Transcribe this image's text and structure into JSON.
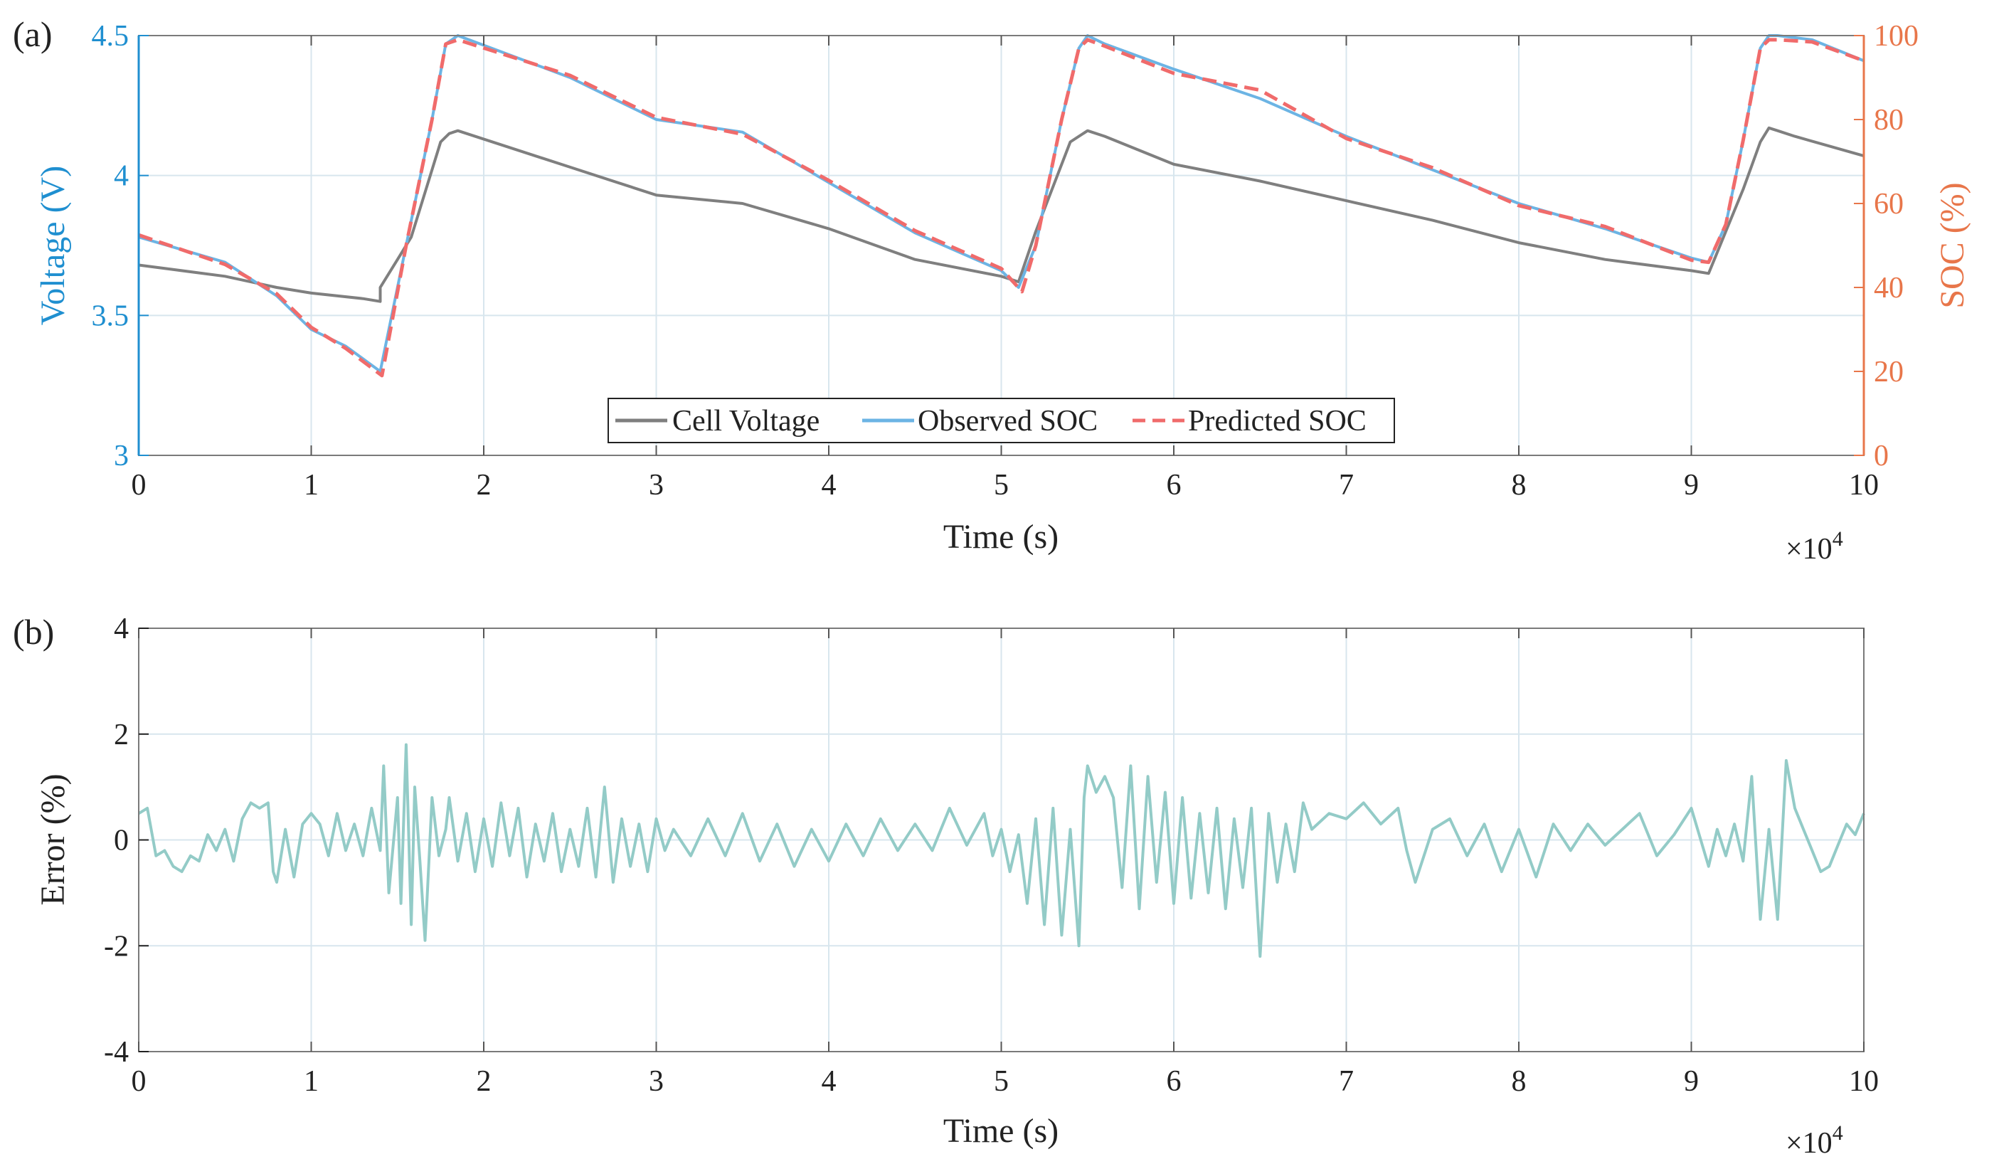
{
  "colors": {
    "voltage": "#7f7f7f",
    "observed": "#6cb4e4",
    "predicted": "#f06b6b",
    "error": "#93cbc7",
    "left_axis": "#1f8fd0",
    "right_axis": "#e8764a",
    "grid": "#d8e6ee",
    "axis": "#404040"
  },
  "chart_data": [
    {
      "type": "line",
      "panel_label": "(a)",
      "xlabel": "Time (s)",
      "x_multiplier": "×10",
      "x_multiplier_exp": "4",
      "xlim": [
        0,
        10
      ],
      "xticks": [
        "0",
        "1",
        "2",
        "3",
        "4",
        "5",
        "6",
        "7",
        "8",
        "9",
        "10"
      ],
      "ylabel_left": "Voltage (V)",
      "ylim_left": [
        3,
        4.5
      ],
      "yticks_left": [
        "3",
        "3.5",
        "4",
        "4.5"
      ],
      "ylabel_right": "SOC (%)",
      "ylim_right": [
        0,
        100
      ],
      "yticks_right": [
        "0",
        "20",
        "40",
        "60",
        "80",
        "100"
      ],
      "grid": true,
      "legend": [
        "Cell Voltage",
        "Observed SOC",
        "Predicted SOC"
      ],
      "legend_position": "bottom-center",
      "series": [
        {
          "name": "Cell Voltage",
          "axis": "left",
          "x": [
            0,
            0.5,
            0.8,
            1.0,
            1.3,
            1.4,
            1.4,
            1.5,
            1.58,
            1.75,
            1.8,
            1.85,
            2.5,
            3.0,
            3.5,
            4.0,
            4.5,
            5.0,
            5.05,
            5.1,
            5.2,
            5.4,
            5.5,
            5.6,
            6.0,
            6.5,
            7.0,
            7.5,
            8.0,
            8.5,
            9.0,
            9.1,
            9.2,
            9.3,
            9.4,
            9.45,
            9.5,
            9.6,
            10.0
          ],
          "values": [
            3.68,
            3.64,
            3.6,
            3.58,
            3.56,
            3.55,
            3.6,
            3.7,
            3.78,
            4.12,
            4.15,
            4.16,
            4.03,
            3.93,
            3.9,
            3.81,
            3.7,
            3.64,
            3.63,
            3.62,
            3.8,
            4.12,
            4.16,
            4.14,
            4.04,
            3.98,
            3.91,
            3.84,
            3.76,
            3.7,
            3.66,
            3.65,
            3.8,
            3.95,
            4.12,
            4.17,
            4.16,
            4.14,
            4.07
          ]
        },
        {
          "name": "Observed SOC",
          "axis": "right",
          "x": [
            0,
            0.5,
            0.8,
            1.0,
            1.2,
            1.4,
            1.55,
            1.7,
            1.78,
            1.85,
            2.5,
            3.0,
            3.5,
            4.0,
            4.5,
            5.0,
            5.1,
            5.2,
            5.35,
            5.45,
            5.5,
            5.6,
            6.0,
            6.5,
            7.0,
            7.5,
            8.0,
            8.5,
            9.0,
            9.1,
            9.2,
            9.3,
            9.4,
            9.45,
            9.5,
            9.7,
            10.0
          ],
          "values": [
            52,
            46,
            38,
            30,
            26,
            20,
            50,
            80,
            98,
            100,
            90,
            80,
            77,
            65,
            53,
            44,
            40,
            50,
            80,
            97,
            100,
            98,
            92,
            85,
            76,
            68,
            60,
            54,
            47,
            46,
            55,
            75,
            97,
            100,
            100,
            99,
            94
          ]
        },
        {
          "name": "Predicted SOC",
          "axis": "right",
          "x": [
            0,
            0.5,
            0.8,
            1.0,
            1.2,
            1.41,
            1.55,
            1.7,
            1.78,
            1.85,
            2.5,
            3.0,
            3.5,
            4.0,
            4.5,
            5.0,
            5.12,
            5.2,
            5.35,
            5.45,
            5.5,
            5.6,
            6.0,
            6.5,
            7.0,
            7.5,
            8.0,
            8.5,
            9.0,
            9.1,
            9.2,
            9.3,
            9.4,
            9.45,
            9.5,
            9.7,
            10.0
          ],
          "values": [
            52.5,
            45.5,
            38.5,
            30.5,
            25.5,
            19,
            50,
            80,
            98,
            99,
            90.5,
            80.5,
            76.5,
            65.5,
            53.5,
            44.5,
            39,
            50,
            80,
            97,
            99,
            97.5,
            91,
            87,
            75.5,
            68.5,
            59.5,
            54.5,
            46.5,
            46,
            55,
            75,
            97,
            99,
            99,
            98.5,
            94
          ]
        }
      ]
    },
    {
      "type": "line",
      "panel_label": "(b)",
      "xlabel": "Time (s)",
      "x_multiplier": "×10",
      "x_multiplier_exp": "4",
      "xlim": [
        0,
        10
      ],
      "xticks": [
        "0",
        "1",
        "2",
        "3",
        "4",
        "5",
        "6",
        "7",
        "8",
        "9",
        "10"
      ],
      "ylabel": "Error (%)",
      "ylim": [
        -4,
        4
      ],
      "yticks": [
        "-4",
        "-2",
        "0",
        "2",
        "4"
      ],
      "grid": true,
      "series": [
        {
          "name": "Error",
          "x": [
            0,
            0.05,
            0.1,
            0.15,
            0.2,
            0.25,
            0.3,
            0.35,
            0.4,
            0.45,
            0.5,
            0.55,
            0.6,
            0.65,
            0.7,
            0.75,
            0.78,
            0.8,
            0.85,
            0.9,
            0.95,
            1.0,
            1.05,
            1.1,
            1.15,
            1.2,
            1.25,
            1.3,
            1.35,
            1.4,
            1.42,
            1.45,
            1.5,
            1.52,
            1.55,
            1.58,
            1.6,
            1.63,
            1.66,
            1.7,
            1.74,
            1.78,
            1.8,
            1.85,
            1.9,
            1.95,
            2.0,
            2.05,
            2.1,
            2.15,
            2.2,
            2.25,
            2.3,
            2.35,
            2.4,
            2.45,
            2.5,
            2.55,
            2.6,
            2.65,
            2.7,
            2.75,
            2.8,
            2.85,
            2.9,
            2.95,
            3.0,
            3.05,
            3.1,
            3.2,
            3.3,
            3.4,
            3.5,
            3.6,
            3.7,
            3.8,
            3.9,
            4.0,
            4.1,
            4.2,
            4.3,
            4.4,
            4.5,
            4.6,
            4.7,
            4.8,
            4.9,
            4.95,
            5.0,
            5.05,
            5.1,
            5.15,
            5.2,
            5.25,
            5.3,
            5.35,
            5.4,
            5.45,
            5.48,
            5.5,
            5.55,
            5.6,
            5.65,
            5.7,
            5.75,
            5.8,
            5.85,
            5.9,
            5.95,
            6.0,
            6.05,
            6.1,
            6.15,
            6.2,
            6.25,
            6.3,
            6.35,
            6.4,
            6.45,
            6.5,
            6.55,
            6.6,
            6.65,
            6.7,
            6.75,
            6.8,
            6.9,
            7.0,
            7.1,
            7.2,
            7.3,
            7.35,
            7.4,
            7.5,
            7.6,
            7.7,
            7.8,
            7.9,
            8.0,
            8.1,
            8.2,
            8.3,
            8.4,
            8.5,
            8.6,
            8.7,
            8.8,
            8.9,
            9.0,
            9.1,
            9.15,
            9.2,
            9.25,
            9.3,
            9.35,
            9.4,
            9.45,
            9.5,
            9.55,
            9.6,
            9.65,
            9.7,
            9.75,
            9.8,
            9.85,
            9.9,
            9.95,
            10.0
          ],
          "values": [
            0.5,
            0.6,
            -0.3,
            -0.2,
            -0.5,
            -0.6,
            -0.3,
            -0.4,
            0.1,
            -0.2,
            0.2,
            -0.4,
            0.4,
            0.7,
            0.6,
            0.7,
            -0.6,
            -0.8,
            0.2,
            -0.7,
            0.3,
            0.5,
            0.3,
            -0.3,
            0.5,
            -0.2,
            0.3,
            -0.3,
            0.6,
            -0.2,
            1.4,
            -1.0,
            0.8,
            -1.2,
            1.8,
            -1.6,
            1.0,
            -0.4,
            -1.9,
            0.8,
            -0.3,
            0.2,
            0.8,
            -0.4,
            0.5,
            -0.6,
            0.4,
            -0.5,
            0.7,
            -0.3,
            0.6,
            -0.7,
            0.3,
            -0.4,
            0.5,
            -0.6,
            0.2,
            -0.5,
            0.6,
            -0.7,
            1.0,
            -0.8,
            0.4,
            -0.5,
            0.3,
            -0.6,
            0.4,
            -0.2,
            0.2,
            -0.3,
            0.4,
            -0.3,
            0.5,
            -0.4,
            0.3,
            -0.5,
            0.2,
            -0.4,
            0.3,
            -0.3,
            0.4,
            -0.2,
            0.3,
            -0.2,
            0.6,
            -0.1,
            0.5,
            -0.3,
            0.2,
            -0.6,
            0.1,
            -1.2,
            0.4,
            -1.6,
            0.6,
            -1.8,
            0.2,
            -2.0,
            0.8,
            1.4,
            0.9,
            1.2,
            0.8,
            -0.9,
            1.4,
            -1.3,
            1.2,
            -0.8,
            0.9,
            -1.2,
            0.8,
            -1.1,
            0.5,
            -1.0,
            0.6,
            -1.3,
            0.4,
            -0.9,
            0.6,
            -2.2,
            0.5,
            -0.8,
            0.3,
            -0.6,
            0.7,
            0.2,
            0.5,
            0.4,
            0.7,
            0.3,
            0.6,
            -0.2,
            -0.8,
            0.2,
            0.4,
            -0.3,
            0.3,
            -0.6,
            0.2,
            -0.7,
            0.3,
            -0.2,
            0.3,
            -0.1,
            0.2,
            0.5,
            -0.3,
            0.1,
            0.6,
            -0.5,
            0.2,
            -0.3,
            0.3,
            -0.4,
            1.2,
            -1.5,
            0.2,
            -1.5,
            1.5,
            0.6,
            0.2,
            -0.2,
            -0.6,
            -0.5,
            -0.1,
            0.3,
            0.1,
            0.5
          ]
        }
      ]
    }
  ]
}
